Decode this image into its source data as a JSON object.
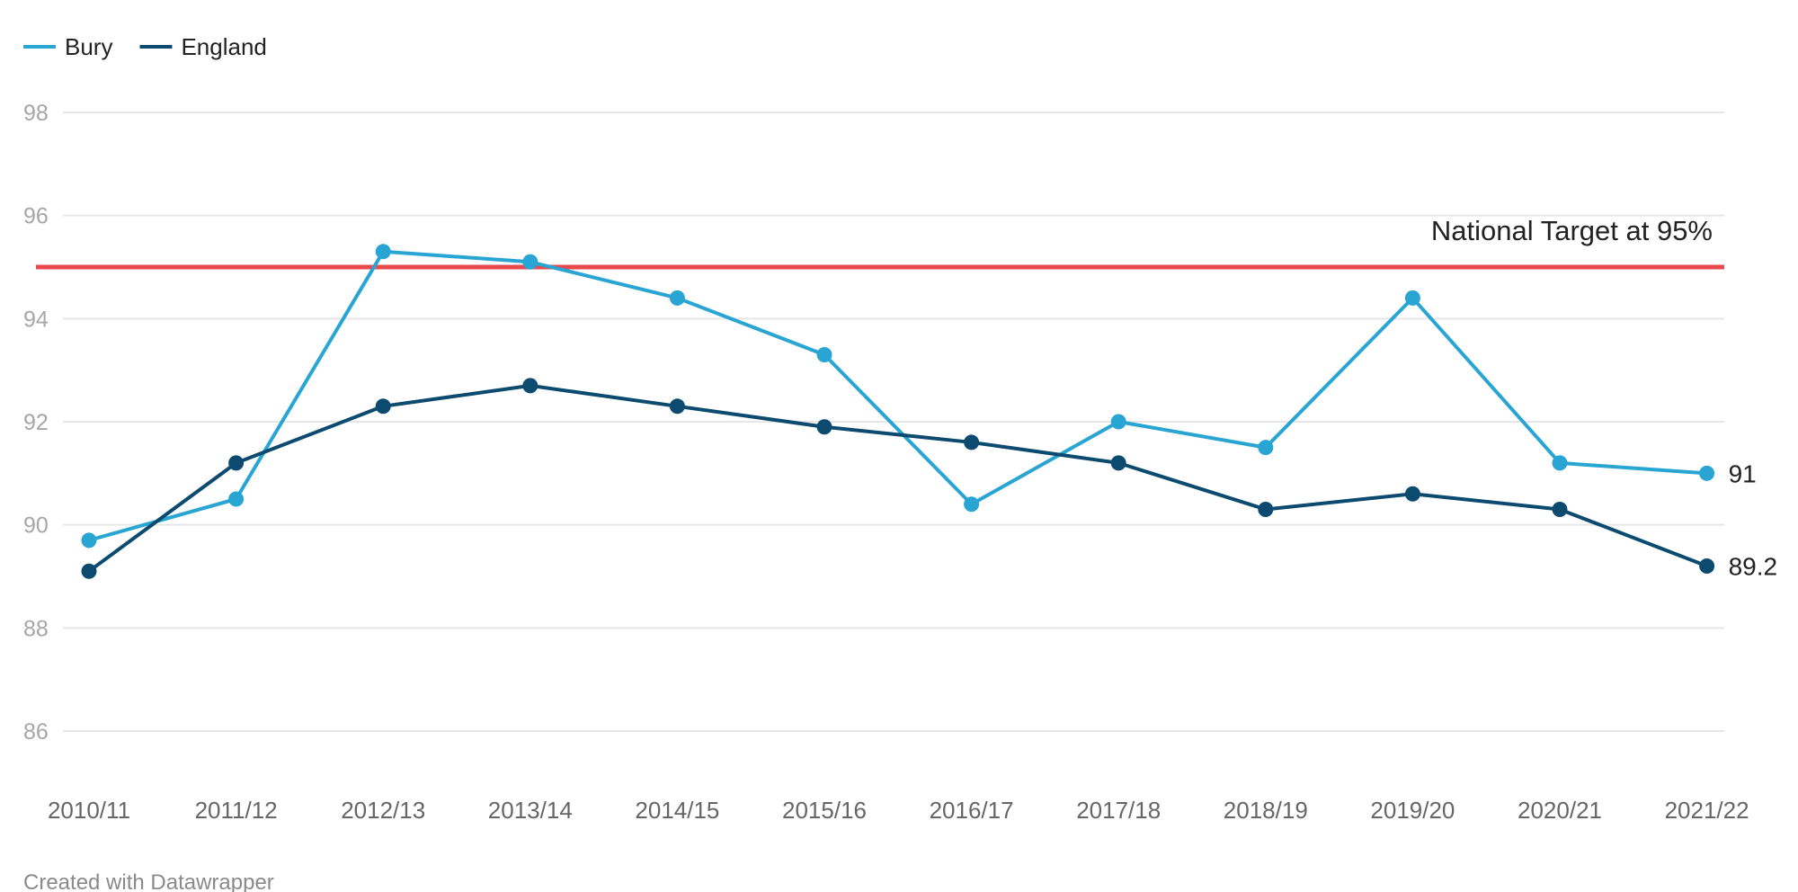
{
  "chart_data": {
    "type": "line",
    "categories": [
      "2010/11",
      "2011/12",
      "2012/13",
      "2013/14",
      "2014/15",
      "2015/16",
      "2016/17",
      "2017/18",
      "2018/19",
      "2019/20",
      "2020/21",
      "2021/22"
    ],
    "series": [
      {
        "name": "Bury",
        "color": "#29a5d3",
        "values": [
          89.7,
          90.5,
          95.3,
          95.1,
          94.4,
          93.3,
          90.4,
          92.0,
          91.5,
          94.4,
          91.2,
          91.0
        ],
        "end_label": "91"
      },
      {
        "name": "England",
        "color": "#0c4a70",
        "values": [
          89.1,
          91.2,
          92.3,
          92.7,
          92.3,
          91.9,
          91.6,
          91.2,
          90.3,
          90.6,
          90.3,
          89.2
        ],
        "end_label": "89.2"
      }
    ],
    "y_ticks": [
      "86",
      "88",
      "90",
      "92",
      "94",
      "96",
      "98"
    ],
    "ylim": [
      86,
      98
    ],
    "reference_line": {
      "value": 95,
      "label": "National Target at 95%",
      "color": "#e8494d"
    },
    "legend_position": "top-left",
    "grid": true
  },
  "footer": "Created with Datawrapper"
}
